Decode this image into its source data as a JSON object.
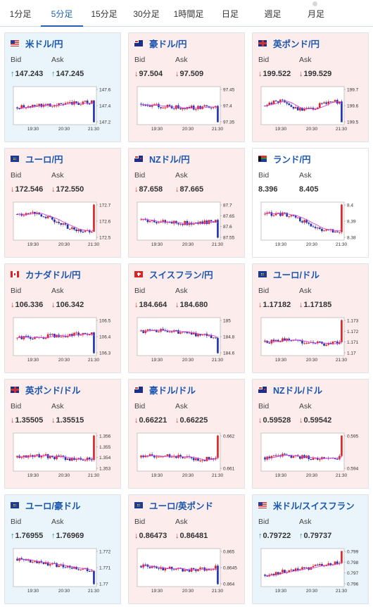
{
  "tabs": [
    {
      "label": "1分足",
      "active": false
    },
    {
      "label": "5分足",
      "active": true
    },
    {
      "label": "15分足",
      "active": false
    },
    {
      "label": "30分足",
      "active": false
    },
    {
      "label": "1時間足",
      "active": false
    },
    {
      "label": "日足",
      "active": false
    },
    {
      "label": "週足",
      "active": false
    },
    {
      "label": "月足",
      "active": false
    }
  ],
  "labels": {
    "bid": "Bid",
    "ask": "Ask"
  },
  "colors": {
    "up_arrow": "#1f8f8f",
    "down_arrow": "#d23838",
    "link": "#1a56b0",
    "candle_up": "#e02020",
    "candle_down": "#1c2fb5",
    "ma_line": "#d444d4",
    "card_up_bg": "#eaf4fb",
    "card_down_bg": "#fcecec"
  },
  "cards": [
    {
      "pair": "米ドル/円",
      "flag": "us",
      "bid": "147.243",
      "ask": "147.245",
      "dir": "up",
      "yticks": [
        "147.6",
        "147.4",
        "147.2"
      ],
      "xticks": [
        "19:30",
        "20:30",
        "21:30"
      ],
      "trend": "slight_up_drop"
    },
    {
      "pair": "豪ドル/円",
      "flag": "au",
      "bid": "97.504",
      "ask": "97.509",
      "dir": "down",
      "yticks": [
        "97.45",
        "97.4",
        "97.35"
      ],
      "xticks": [
        "19:30",
        "20:30",
        "21:30"
      ],
      "trend": "dip_recover"
    },
    {
      "pair": "英ポンド/円",
      "flag": "gb",
      "bid": "199.522",
      "ask": "199.529",
      "dir": "down",
      "yticks": [
        "199.7",
        "199.6",
        "199.5"
      ],
      "xticks": [
        "19:30",
        "20:30",
        "21:30"
      ],
      "trend": "wave_drop"
    },
    {
      "pair": "ユーロ/円",
      "flag": "eu",
      "bid": "172.546",
      "ask": "172.550",
      "dir": "down",
      "yticks": [
        "172.7",
        "172.6",
        "172.5"
      ],
      "xticks": [
        "19:30",
        "20:30",
        "21:30"
      ],
      "trend": "down_spike"
    },
    {
      "pair": "NZドル/円",
      "flag": "nz",
      "bid": "87.658",
      "ask": "87.665",
      "dir": "down",
      "yticks": [
        "87.7",
        "87.65",
        "87.6",
        "87.55"
      ],
      "xticks": [
        "19:30",
        "20:30",
        "21:30"
      ],
      "trend": "dip_recover"
    },
    {
      "pair": "ランド/円",
      "flag": "za",
      "bid": "8.396",
      "ask": "8.405",
      "dir": "flat",
      "yticks": [
        "8.4",
        "8.39",
        "8.38"
      ],
      "xticks": [
        "19:30",
        "20:30",
        "21:30"
      ],
      "trend": "down_spike"
    },
    {
      "pair": "カナダドル/円",
      "flag": "ca",
      "bid": "106.336",
      "ask": "106.342",
      "dir": "down",
      "yticks": [
        "106.5",
        "106.4",
        "106.3"
      ],
      "xticks": [
        "19:30",
        "20:30",
        "21:30"
      ],
      "trend": "slight_up_drop"
    },
    {
      "pair": "スイスフラン/円",
      "flag": "ch",
      "bid": "184.664",
      "ask": "184.680",
      "dir": "down",
      "yticks": [
        "185",
        "184.8",
        "184.6"
      ],
      "xticks": [
        "19:30",
        "20:30",
        "21:30"
      ],
      "trend": "flat_drop"
    },
    {
      "pair": "ユーロ/ドル",
      "flag": "eu",
      "bid": "1.17182",
      "ask": "1.17185",
      "dir": "down",
      "yticks": [
        "1.173",
        "1.172",
        "1.171",
        "1.17"
      ],
      "xticks": [
        "19:30",
        "20:30",
        "21:30"
      ],
      "trend": "flat_spike"
    },
    {
      "pair": "英ポンド/ドル",
      "flag": "gb",
      "bid": "1.35505",
      "ask": "1.35515",
      "dir": "down",
      "yticks": [
        "1.356",
        "1.355",
        "1.354",
        "1.353"
      ],
      "xticks": [
        "19:30",
        "20:30",
        "21:30"
      ],
      "trend": "flat_spike"
    },
    {
      "pair": "豪ドル/ドル",
      "flag": "au",
      "bid": "0.66221",
      "ask": "0.66225",
      "dir": "down",
      "yticks": [
        "0.662",
        "0.661"
      ],
      "xticks": [
        "19:30",
        "20:30",
        "21:30"
      ],
      "trend": "flat_spike"
    },
    {
      "pair": "NZドル/ドル",
      "flag": "nz",
      "bid": "0.59528",
      "ask": "0.59542",
      "dir": "down",
      "yticks": [
        "0.595",
        "0.594"
      ],
      "xticks": [
        "19:30",
        "20:30",
        "21:30"
      ],
      "trend": "flat_spike"
    },
    {
      "pair": "ユーロ/豪ドル",
      "flag": "eu",
      "bid": "1.76955",
      "ask": "1.76969",
      "dir": "up",
      "yticks": [
        "1.772",
        "1.771",
        "1.77"
      ],
      "xticks": [
        "19:30",
        "20:30",
        "21:30"
      ],
      "trend": "down_drop"
    },
    {
      "pair": "ユーロ/英ポンド",
      "flag": "eu",
      "bid": "0.86473",
      "ask": "0.86481",
      "dir": "down",
      "yticks": [
        "0.865",
        "0.8645",
        "0.864"
      ],
      "xticks": [
        "19:30",
        "20:30",
        "21:30"
      ],
      "trend": "dip_recover"
    },
    {
      "pair": "米ドル/スイスフラン",
      "flag": "us",
      "bid": "0.79722",
      "ask": "0.79737",
      "dir": "up",
      "yticks": [
        "0.799",
        "0.798",
        "0.797",
        "0.796"
      ],
      "xticks": [
        "19:30",
        "20:30",
        "21:30"
      ],
      "trend": "up_rise"
    }
  ]
}
